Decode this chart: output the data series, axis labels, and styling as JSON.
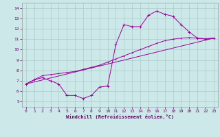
{
  "xlabel": "Windchill (Refroidissement éolien,°C)",
  "xlim": [
    -0.5,
    23.5
  ],
  "ylim": [
    4.5,
    14.5
  ],
  "xticks": [
    0,
    1,
    2,
    3,
    4,
    5,
    6,
    7,
    8,
    9,
    10,
    11,
    12,
    13,
    14,
    15,
    16,
    17,
    18,
    19,
    20,
    21,
    22,
    23
  ],
  "yticks": [
    5,
    6,
    7,
    8,
    9,
    10,
    11,
    12,
    13,
    14
  ],
  "bg_color": "#cce8e8",
  "line_color": "#990099",
  "grid_color": "#aacccc",
  "line1_x": [
    0,
    1,
    2,
    3,
    4,
    5,
    6,
    7,
    8,
    9,
    10,
    11,
    12,
    13,
    14,
    15,
    16,
    17,
    18,
    19,
    20,
    21,
    22,
    23
  ],
  "line1_y": [
    6.7,
    7.1,
    7.3,
    7.0,
    6.7,
    5.6,
    5.6,
    5.3,
    5.6,
    6.4,
    6.5,
    10.5,
    12.4,
    12.2,
    12.2,
    13.3,
    13.7,
    13.4,
    13.2,
    12.4,
    11.7,
    11.1,
    11.0,
    11.1
  ],
  "line2_x": [
    0,
    1,
    2,
    3,
    4,
    5,
    6,
    7,
    8,
    9,
    10,
    11,
    12,
    13,
    14,
    15,
    16,
    17,
    18,
    19,
    20,
    21,
    22,
    23
  ],
  "line2_y": [
    6.7,
    7.1,
    7.5,
    7.6,
    7.7,
    7.8,
    7.9,
    8.1,
    8.3,
    8.5,
    8.8,
    9.1,
    9.4,
    9.7,
    10.0,
    10.3,
    10.6,
    10.85,
    11.0,
    11.1,
    11.15,
    11.1,
    11.05,
    11.1
  ],
  "line3_x": [
    0,
    23
  ],
  "line3_y": [
    6.7,
    11.1
  ]
}
